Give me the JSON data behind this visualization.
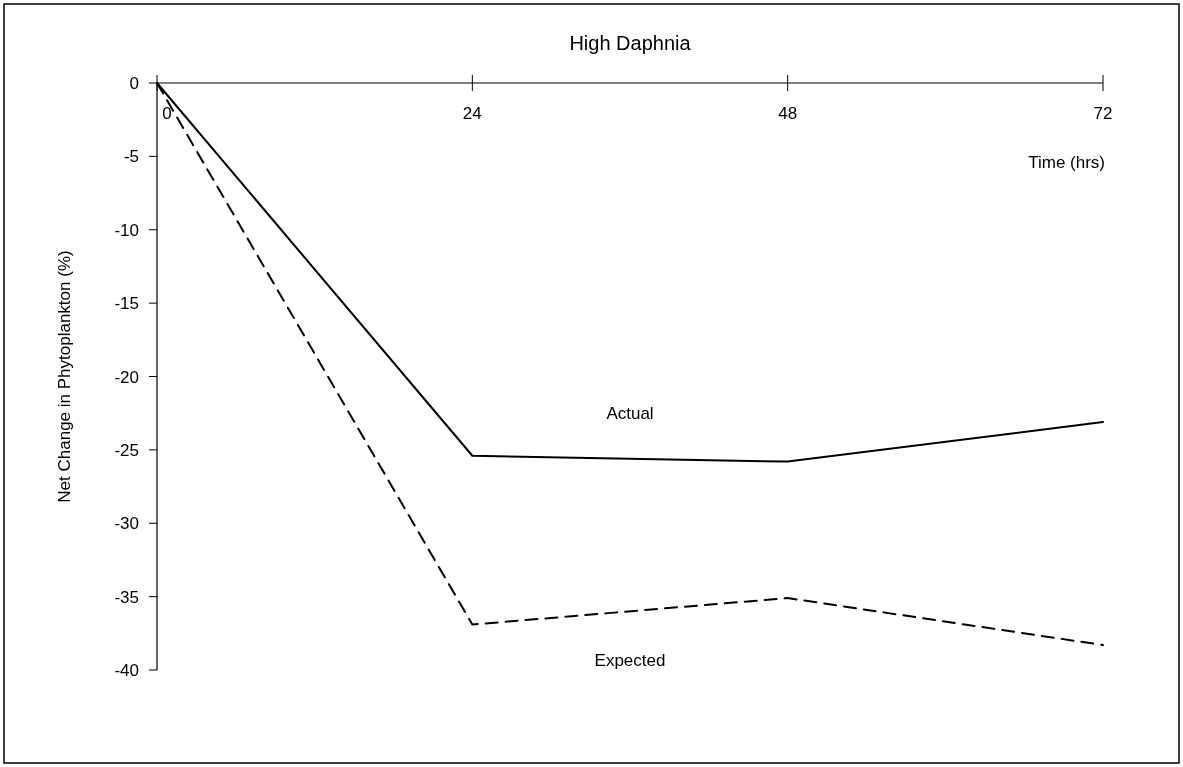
{
  "chart_data": {
    "type": "line",
    "title": "High Daphnia",
    "xlabel": "Time (hrs)",
    "ylabel": "Net Change in Phytoplankton (%)",
    "x": [
      0,
      24,
      48,
      72
    ],
    "xlim": [
      0,
      72
    ],
    "xticks": [
      0,
      24,
      48,
      72
    ],
    "ylim": [
      -40,
      0
    ],
    "yticks": [
      0,
      -5,
      -10,
      -15,
      -20,
      -25,
      -30,
      -35,
      -40
    ],
    "grid": false,
    "marker": "none",
    "series": [
      {
        "name": "Actual",
        "color": "#000000",
        "line_style": "solid",
        "values": [
          0,
          -25.4,
          -25.8,
          -23.1
        ]
      },
      {
        "name": "Expected",
        "color": "#000000",
        "line_style": "dashed",
        "values": [
          0,
          -36.9,
          -35.1,
          -38.3
        ]
      }
    ]
  }
}
